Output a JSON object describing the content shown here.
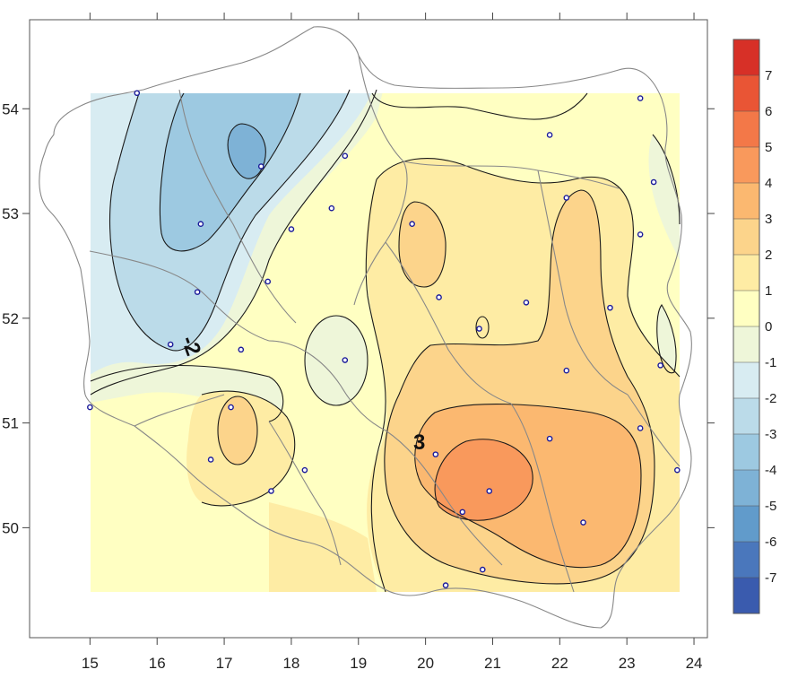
{
  "chart_data": {
    "type": "heatmap",
    "title": "",
    "xlabel": "",
    "ylabel": "",
    "xlim": [
      14.1,
      24.2
    ],
    "ylim": [
      48.95,
      54.85
    ],
    "x_ticks": [
      "15",
      "16",
      "17",
      "18",
      "19",
      "20",
      "21",
      "22",
      "23",
      "24"
    ],
    "y_ticks": [
      "50",
      "51",
      "52",
      "53",
      "54"
    ],
    "legend_placement": "right",
    "colorbar": {
      "levels": [
        "7",
        "6",
        "5",
        "4",
        "3",
        "2",
        "1",
        "0",
        "-1",
        "-2",
        "-3",
        "-4",
        "-5",
        "-6",
        "-7"
      ],
      "colors": [
        "#d73027",
        "#e95535",
        "#f37848",
        "#f9995c",
        "#fbb870",
        "#fcd48b",
        "#feeca4",
        "#ffffc2",
        "#eef6d9",
        "#d8ecf2",
        "#bbdbe9",
        "#9dc9e1",
        "#7eb2d6",
        "#619bcb",
        "#4a77bc",
        "#3a5bae"
      ]
    },
    "contour_labels": [
      {
        "text": "-2",
        "lon": 16.45,
        "lat": 51.75
      },
      {
        "text": "3",
        "lon": 19.9,
        "lat": 50.8
      }
    ],
    "stations": [
      {
        "lon": 15.7,
        "lat": 54.15
      },
      {
        "lon": 23.2,
        "lat": 54.1
      },
      {
        "lon": 17.55,
        "lat": 53.45
      },
      {
        "lon": 18.8,
        "lat": 53.55
      },
      {
        "lon": 21.85,
        "lat": 53.75
      },
      {
        "lon": 23.4,
        "lat": 53.3
      },
      {
        "lon": 16.65,
        "lat": 52.9
      },
      {
        "lon": 18.6,
        "lat": 53.05
      },
      {
        "lon": 19.8,
        "lat": 52.9
      },
      {
        "lon": 22.1,
        "lat": 53.15
      },
      {
        "lon": 23.2,
        "lat": 52.8
      },
      {
        "lon": 18.0,
        "lat": 52.85
      },
      {
        "lon": 16.6,
        "lat": 52.25
      },
      {
        "lon": 17.65,
        "lat": 52.35
      },
      {
        "lon": 20.2,
        "lat": 52.2
      },
      {
        "lon": 21.5,
        "lat": 52.15
      },
      {
        "lon": 22.75,
        "lat": 52.1
      },
      {
        "lon": 20.8,
        "lat": 51.9
      },
      {
        "lon": 16.2,
        "lat": 51.75
      },
      {
        "lon": 17.25,
        "lat": 51.7
      },
      {
        "lon": 18.8,
        "lat": 51.6
      },
      {
        "lon": 23.5,
        "lat": 51.55
      },
      {
        "lon": 22.1,
        "lat": 51.5
      },
      {
        "lon": 15.0,
        "lat": 51.15
      },
      {
        "lon": 17.1,
        "lat": 51.15
      },
      {
        "lon": 23.2,
        "lat": 50.95
      },
      {
        "lon": 21.85,
        "lat": 50.85
      },
      {
        "lon": 20.15,
        "lat": 50.7
      },
      {
        "lon": 16.8,
        "lat": 50.65
      },
      {
        "lon": 18.2,
        "lat": 50.55
      },
      {
        "lon": 23.75,
        "lat": 50.55
      },
      {
        "lon": 20.95,
        "lat": 50.35
      },
      {
        "lon": 17.7,
        "lat": 50.35
      },
      {
        "lon": 20.55,
        "lat": 50.15
      },
      {
        "lon": 22.35,
        "lat": 50.05
      },
      {
        "lon": 20.85,
        "lat": 49.6
      },
      {
        "lon": 20.3,
        "lat": 49.45
      }
    ]
  }
}
